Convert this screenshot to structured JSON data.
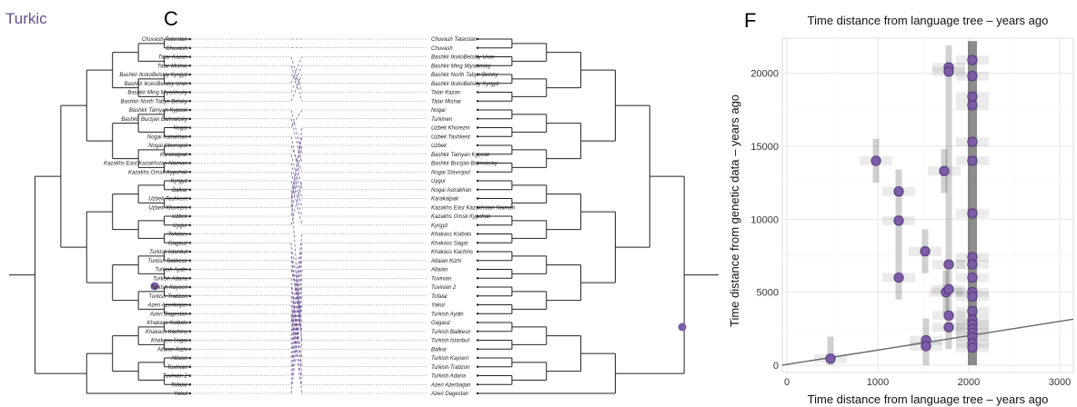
{
  "panel_label_left": "Turkic",
  "panel_c_letter": "C",
  "panel_f_letter": "F",
  "left_leaves": [
    "Chuvash Tatarstan",
    "Chuvash",
    "Tatar Kazan",
    "Tatar Mishar",
    "Bashkir IkskoBelskiy Kyrgyz",
    "Bashkir IkskoBelskiy Uran",
    "Bashkir Ming Miyakinsky",
    "Bashkir North Tabyn Belsky",
    "Bashkir Tamyan Kypcak",
    "Bashkir Burzjan Baimaksky",
    "Nogai",
    "Nogai Astrakhan",
    "Nogai Stavropol",
    "Karakalpak",
    "Kazakhs East Kazakhstan Naiman",
    "Kazakhs Omsk Kypchak",
    "Kyrgyz",
    "Balkar",
    "Uzbek Tashkent",
    "Uzbek Khorezm",
    "Uzbek",
    "Uygur",
    "Tofalars",
    "Gagauz",
    "Turkish Istanbul",
    "Turkish Balikesir",
    "Turkish Aydin",
    "Turkish Adana",
    "Turkish Kayseri",
    "Turkish Trabzon",
    "Azeri Azerbaijan",
    "Azeri Dagestan",
    "Khakass Koibals",
    "Khakass Kachins",
    "Khakass Sagai",
    "Altaian Kizhi",
    "Altaian",
    "Tuvinian",
    "Tuvinian 2",
    "Tofalar",
    "Yakut"
  ],
  "right_leaves": [
    "Chuvash Tatarstan",
    "Chuvash",
    "Bashkir IkskoBelskiy Uran",
    "Bashkir Ming Miyakinsky",
    "Bashkir North Tabyn Belsky",
    "Bashkir IkskoBelskiy Kyrgyz",
    "Tatar Kazan",
    "Tatar Mishar",
    "Nogai",
    "Turkmen",
    "Uzbek Khorezm",
    "Uzbek Tashkent",
    "Uzbek",
    "Bashkir Tamyan Kypcak",
    "Bashkir Burzjan Baimaksky",
    "Nogai Stavropol",
    "Uygur",
    "Nogai Astrakhan",
    "Karakalpak",
    "Kazakhs East Kazakhstan Naiman",
    "Kazakhs Omsk Kypchak",
    "Kyrgyz",
    "Khakass Koibals",
    "Khakass Sagai",
    "Khakass Kachins",
    "Altaian Kizhi",
    "Altaian",
    "Tuvinian",
    "Tuvinian 2",
    "Tofalar",
    "Yakut",
    "Turkish Aydin",
    "Gagauz",
    "Turkish Balikesir",
    "Turkish Istanbul",
    "Balkar",
    "Turkish Kayseri",
    "Turkish Trabzon",
    "Turkish Adana",
    "Azeri Azerbaijan",
    "Azeri Dagestan"
  ],
  "chart_data": {
    "type": "scatter",
    "title": "Time distance from language tree – years ago",
    "xlabel": "Time distance from language tree – years ago",
    "ylabel": "Time distance from genetic data – years ago",
    "xlim": [
      -50,
      3150
    ],
    "ylim": [
      -500,
      22400
    ],
    "x_ticks": [
      0,
      1000,
      2000,
      3000
    ],
    "y_ticks": [
      0,
      5000,
      10000,
      15000,
      20000
    ],
    "grid": true,
    "points": [
      {
        "x": 480,
        "y": 450
      },
      {
        "x": 980,
        "y": 14000
      },
      {
        "x": 1230,
        "y": 11900
      },
      {
        "x": 1230,
        "y": 9900
      },
      {
        "x": 1230,
        "y": 6000
      },
      {
        "x": 1520,
        "y": 7800
      },
      {
        "x": 1530,
        "y": 1700
      },
      {
        "x": 1530,
        "y": 1300
      },
      {
        "x": 1730,
        "y": 13300
      },
      {
        "x": 1750,
        "y": 5000
      },
      {
        "x": 1780,
        "y": 20400
      },
      {
        "x": 1780,
        "y": 20100
      },
      {
        "x": 1780,
        "y": 6900
      },
      {
        "x": 1780,
        "y": 5200
      },
      {
        "x": 1780,
        "y": 3400
      },
      {
        "x": 1780,
        "y": 2600
      },
      {
        "x": 2040,
        "y": 20900
      },
      {
        "x": 2040,
        "y": 19800
      },
      {
        "x": 2040,
        "y": 18400
      },
      {
        "x": 2040,
        "y": 17800
      },
      {
        "x": 2040,
        "y": 15300
      },
      {
        "x": 2040,
        "y": 14000
      },
      {
        "x": 2040,
        "y": 10400
      },
      {
        "x": 2040,
        "y": 7400
      },
      {
        "x": 2040,
        "y": 6900
      },
      {
        "x": 2040,
        "y": 6000
      },
      {
        "x": 2040,
        "y": 5000
      },
      {
        "x": 2040,
        "y": 4700
      },
      {
        "x": 2040,
        "y": 3700
      },
      {
        "x": 2040,
        "y": 3100
      },
      {
        "x": 2040,
        "y": 2800
      },
      {
        "x": 2040,
        "y": 2500
      },
      {
        "x": 2040,
        "y": 2200
      },
      {
        "x": 2040,
        "y": 1900
      },
      {
        "x": 2040,
        "y": 1500
      },
      {
        "x": 2040,
        "y": 1200
      }
    ],
    "reference_line": {
      "x": [
        -50,
        3150
      ],
      "y": [
        0,
        3150
      ]
    },
    "point_color": "#7d5ba6",
    "point_stroke": "#4a3370"
  }
}
